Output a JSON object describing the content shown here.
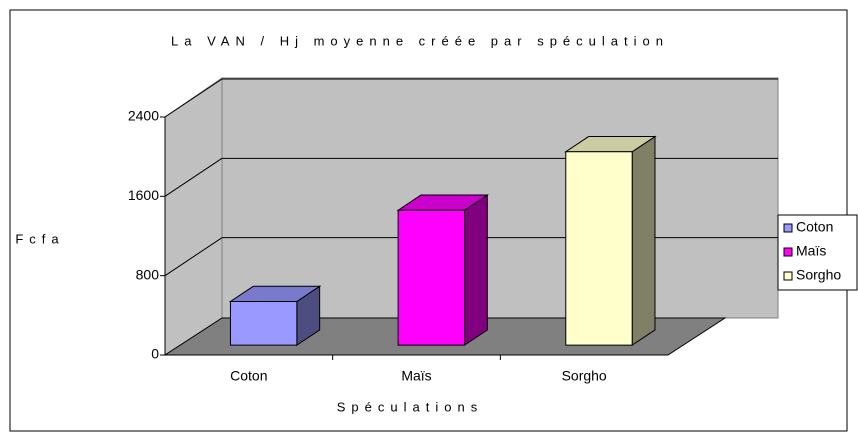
{
  "chart_data": {
    "type": "bar3d",
    "title": "La VAN / Hj moyenne créée par spéculation",
    "x_label": "Spéculations",
    "y_label": "Fcfa",
    "categories": [
      "Coton",
      "Maïs",
      "Sorgho"
    ],
    "series": [
      {
        "name": "Coton",
        "color": "#9999ff",
        "values": [
          440,
          null,
          null
        ]
      },
      {
        "name": "Maïs",
        "color": "#ff00ff",
        "values": [
          null,
          1360,
          null
        ]
      },
      {
        "name": "Sorgho",
        "color": "#ffffcc",
        "values": [
          null,
          null,
          1950
        ]
      }
    ],
    "ylim": [
      0,
      2400
    ],
    "yticks": [
      0,
      800,
      1600,
      2400
    ],
    "grid": true,
    "legend": "right"
  }
}
